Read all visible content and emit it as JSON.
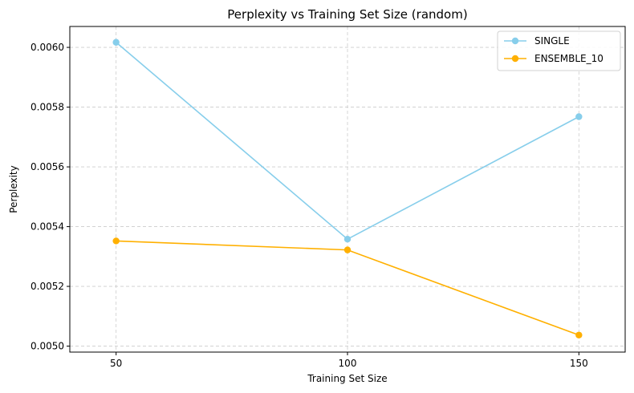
{
  "chart_data": {
    "type": "line",
    "title": "Perplexity vs Training Set Size (random)",
    "xlabel": "Training Set Size",
    "ylabel": "Perplexity",
    "x": [
      50,
      100,
      150
    ],
    "xticks": [
      50,
      100,
      150
    ],
    "xtick_labels": [
      "50",
      "100",
      "150"
    ],
    "xlim": [
      40,
      160
    ],
    "yticks": [
      0.005,
      0.0052,
      0.0054,
      0.0056,
      0.0058,
      0.006
    ],
    "ytick_labels": [
      "0.0050",
      "0.0052",
      "0.0054",
      "0.0056",
      "0.0058",
      "0.0060"
    ],
    "ylim": [
      0.00498,
      0.00607
    ],
    "grid": true,
    "legend_position": "top-right",
    "series": [
      {
        "name": "SINGLE",
        "color": "#87ceeb",
        "values": [
          0.006017,
          0.005358,
          0.005768
        ]
      },
      {
        "name": "ENSEMBLE_10",
        "color": "#ffb000",
        "values": [
          0.005352,
          0.005322,
          0.005037
        ]
      }
    ]
  }
}
